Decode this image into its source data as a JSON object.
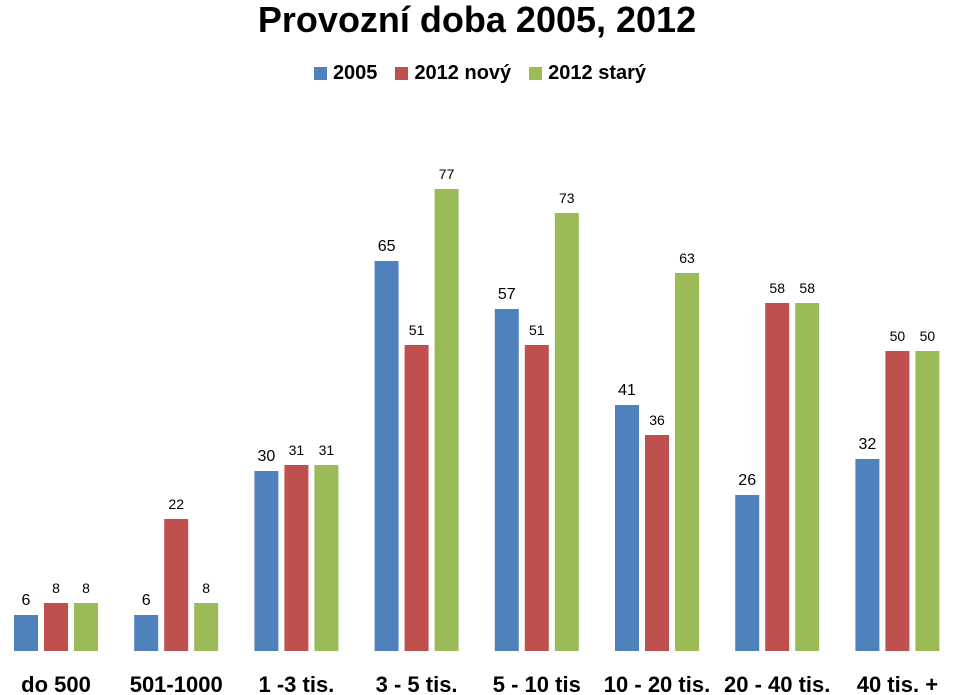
{
  "chart_data": {
    "type": "bar",
    "title": "Provozní doba 2005, 2012",
    "categories": [
      "do 500",
      "501-1000",
      "1 -3 tis.",
      "3 - 5 tis.",
      "5 - 10 tis",
      "10 - 20 tis.",
      "20 - 40 tis.",
      "40 tis. +"
    ],
    "series": [
      {
        "name": "2005",
        "color": "#4F81BD",
        "values": [
          6,
          6,
          30,
          65,
          57,
          41,
          26,
          32
        ]
      },
      {
        "name": "2012 nový",
        "color": "#C0504D",
        "values": [
          8,
          22,
          31,
          51,
          51,
          36,
          58,
          50
        ]
      },
      {
        "name": "2012 starý",
        "color": "#9BBB59",
        "values": [
          8,
          8,
          31,
          77,
          73,
          63,
          58,
          50
        ]
      }
    ],
    "ylim": [
      0,
      82
    ],
    "legend_position": "top",
    "grid": false,
    "data_labels": true
  }
}
